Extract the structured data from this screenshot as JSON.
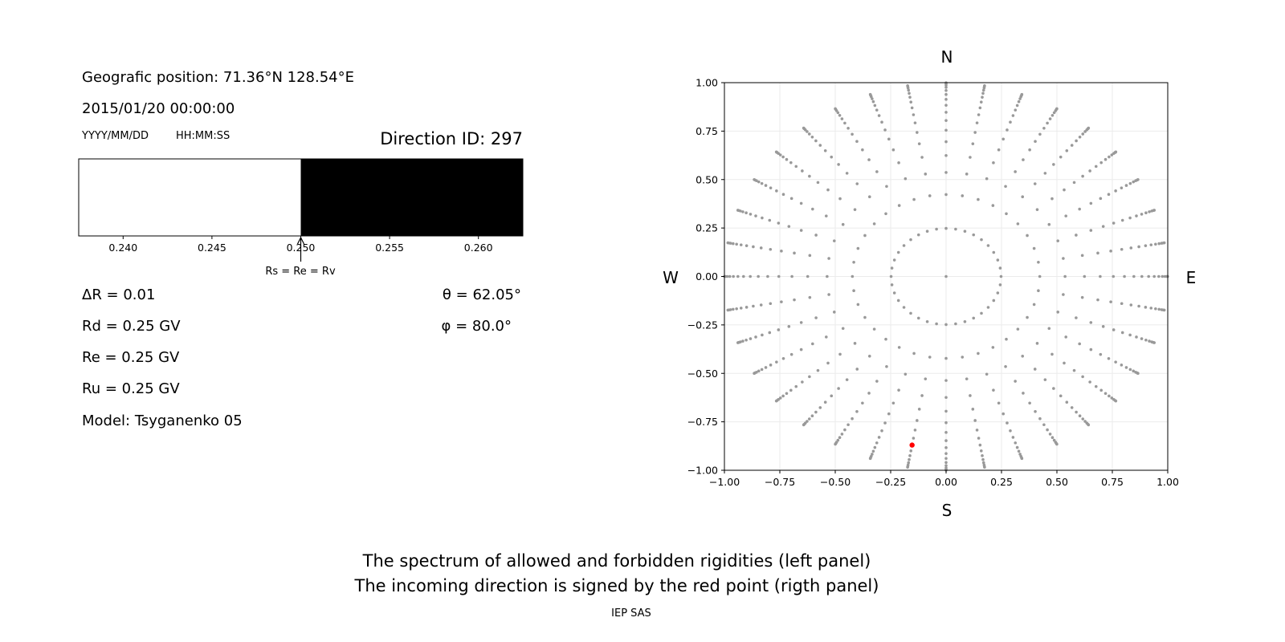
{
  "left_panel": {
    "position": "Geografic position: 71.36°N 128.54°E",
    "datetime": "2015/01/20 00:00:00",
    "date_format": "YYYY/MM/DD",
    "time_format": "HH:MM:SS",
    "direction_id": "Direction ID: 297",
    "delta_r": "ΔR = 0.01",
    "rd": "Rd = 0.25 GV",
    "re": "Re = 0.25 GV",
    "ru": "Ru = 0.25 GV",
    "model": "Model: Tsyganenko 05",
    "theta": "θ = 62.05°",
    "phi": "φ = 80.0°",
    "annotation": "Rs = Re = Rv"
  },
  "right_panel": {
    "north": "N",
    "south": "S",
    "west": "W",
    "east": "E"
  },
  "caption": {
    "line1": "The spectrum of allowed and forbidden rigidities (left panel)",
    "line2": "The incoming direction is signed by the red point (rigth panel)",
    "credit": "IEP SAS"
  },
  "chart_data": [
    {
      "type": "bar",
      "title": "",
      "xlim": [
        0.2375,
        0.2625
      ],
      "xticks": [
        "0.240",
        "0.245",
        "0.250",
        "0.255",
        "0.260"
      ],
      "xtick_values": [
        0.24,
        0.245,
        0.25,
        0.255,
        0.26
      ],
      "segments": [
        {
          "from": 0.2375,
          "to": 0.25,
          "color": "#ffffff",
          "meaning": "allowed"
        },
        {
          "from": 0.25,
          "to": 0.2625,
          "color": "#000000",
          "meaning": "forbidden"
        }
      ],
      "arrow_at": 0.25
    },
    {
      "type": "scatter",
      "xlim": [
        -1,
        1
      ],
      "ylim": [
        -1,
        1
      ],
      "grid": true,
      "ticks": [
        "−1.00",
        "−0.75",
        "−0.50",
        "−0.25",
        "0.00",
        "0.25",
        "0.50",
        "0.75",
        "1.00"
      ],
      "tick_values": [
        -1,
        -0.75,
        -0.5,
        -0.25,
        0,
        0.25,
        0.5,
        0.75,
        1
      ],
      "point_color": "#999999",
      "highlight_color": "#ff0000",
      "zenith_cos_values": [
        0.96875,
        0.90625,
        0.84375,
        0.78125,
        0.71875,
        0.65625,
        0.59375,
        0.53125,
        0.46875,
        0.40625,
        0.34375,
        0.28125,
        0.21875,
        0.15625,
        0.09375,
        0.03125
      ],
      "azimuth_step_deg": 10,
      "center_point": [
        0,
        0
      ],
      "highlight": {
        "theta_deg": 62.05,
        "phi_deg": 80.0
      }
    }
  ]
}
